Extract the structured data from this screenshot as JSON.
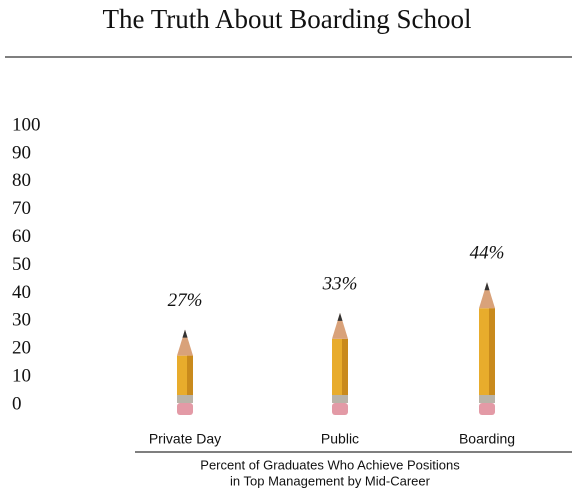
{
  "chart_data": {
    "type": "bar",
    "title": "The Truth About Boarding School",
    "categories": [
      "Private Day",
      "Public",
      "Boarding"
    ],
    "values": [
      27,
      33,
      44
    ],
    "value_labels": [
      "27%",
      "33%",
      "44%"
    ],
    "color": "#e8ac2c",
    "xlabel": [
      "Percent of Graduates Who Achieve Positions",
      "in Top Management by Mid-Career"
    ],
    "ylim": [
      0,
      100
    ],
    "yticks": [
      0,
      10,
      20,
      30,
      40,
      50,
      60,
      70,
      80,
      90,
      100
    ],
    "grid": false
  }
}
